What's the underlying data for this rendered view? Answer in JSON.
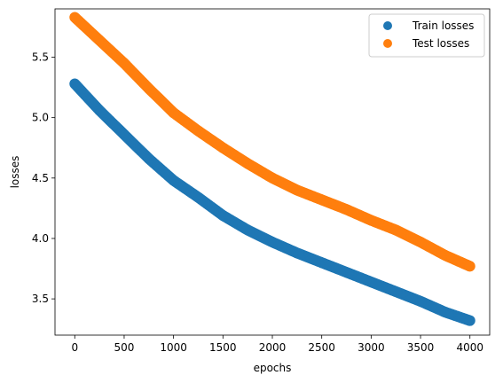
{
  "chart_data": {
    "type": "scatter",
    "xlabel": "epochs",
    "ylabel": "losses",
    "xlim": [
      -200,
      4200
    ],
    "ylim": [
      3.2,
      5.9
    ],
    "xticks": [
      0,
      500,
      1000,
      1500,
      2000,
      2500,
      3000,
      3500,
      4000
    ],
    "xtick_labels": [
      "0",
      "500",
      "1000",
      "1500",
      "2000",
      "2500",
      "3000",
      "3500",
      "4000"
    ],
    "yticks": [
      3.5,
      4.0,
      4.5,
      5.0,
      5.5
    ],
    "ytick_labels": [
      "3.5",
      "4.0",
      "4.5",
      "5.0",
      "5.5"
    ],
    "legend_position": "top-right",
    "grid": false,
    "series": [
      {
        "name": "Train losses",
        "color": "#1f77b4",
        "x": [
          0,
          250,
          500,
          750,
          1000,
          1250,
          1500,
          1750,
          2000,
          2250,
          2500,
          2750,
          3000,
          3250,
          3500,
          3750,
          4000
        ],
        "y": [
          5.28,
          5.06,
          4.86,
          4.66,
          4.48,
          4.34,
          4.19,
          4.07,
          3.97,
          3.88,
          3.8,
          3.72,
          3.64,
          3.56,
          3.48,
          3.39,
          3.32
        ]
      },
      {
        "name": "Test losses",
        "color": "#ff7f0e",
        "x": [
          0,
          250,
          500,
          750,
          1000,
          1250,
          1500,
          1750,
          2000,
          2250,
          2500,
          2750,
          3000,
          3250,
          3500,
          3750,
          4000
        ],
        "y": [
          5.83,
          5.64,
          5.45,
          5.24,
          5.04,
          4.89,
          4.75,
          4.62,
          4.5,
          4.4,
          4.32,
          4.24,
          4.15,
          4.07,
          3.97,
          3.86,
          3.77
        ]
      }
    ]
  }
}
